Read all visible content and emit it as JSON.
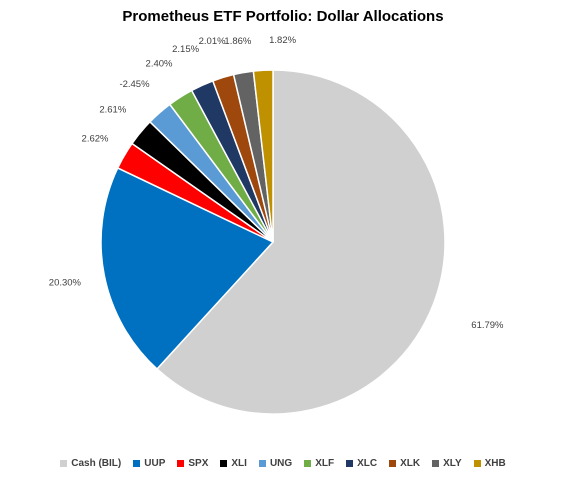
{
  "chart_data": {
    "type": "pie",
    "title": "Prometheus ETF Portfolio: Dollar Allocations",
    "legend_position": "bottom",
    "slices": [
      {
        "name": "Cash (BIL)",
        "label": "61.79%",
        "value": 61.79,
        "color": "#D0D0D0"
      },
      {
        "name": "UUP",
        "label": "20.30%",
        "value": 20.3,
        "color": "#0070C0"
      },
      {
        "name": "SPX",
        "label": "2.62%",
        "value": 2.62,
        "color": "#FF0000"
      },
      {
        "name": "XLI",
        "label": "2.61%",
        "value": 2.61,
        "color": "#000000"
      },
      {
        "name": "UNG",
        "label": "-2.45%",
        "value": -2.45,
        "color": "#5B9BD5"
      },
      {
        "name": "XLF",
        "label": "2.40%",
        "value": 2.4,
        "color": "#70AD47"
      },
      {
        "name": "XLC",
        "label": "2.15%",
        "value": 2.15,
        "color": "#203864"
      },
      {
        "name": "XLK",
        "label": "2.01%",
        "value": 2.01,
        "color": "#9E480E"
      },
      {
        "name": "XLY",
        "label": "1.86%",
        "value": 1.86,
        "color": "#636363"
      },
      {
        "name": "XHB",
        "label": "1.82%",
        "value": 1.82,
        "color": "#BF9000"
      }
    ]
  }
}
